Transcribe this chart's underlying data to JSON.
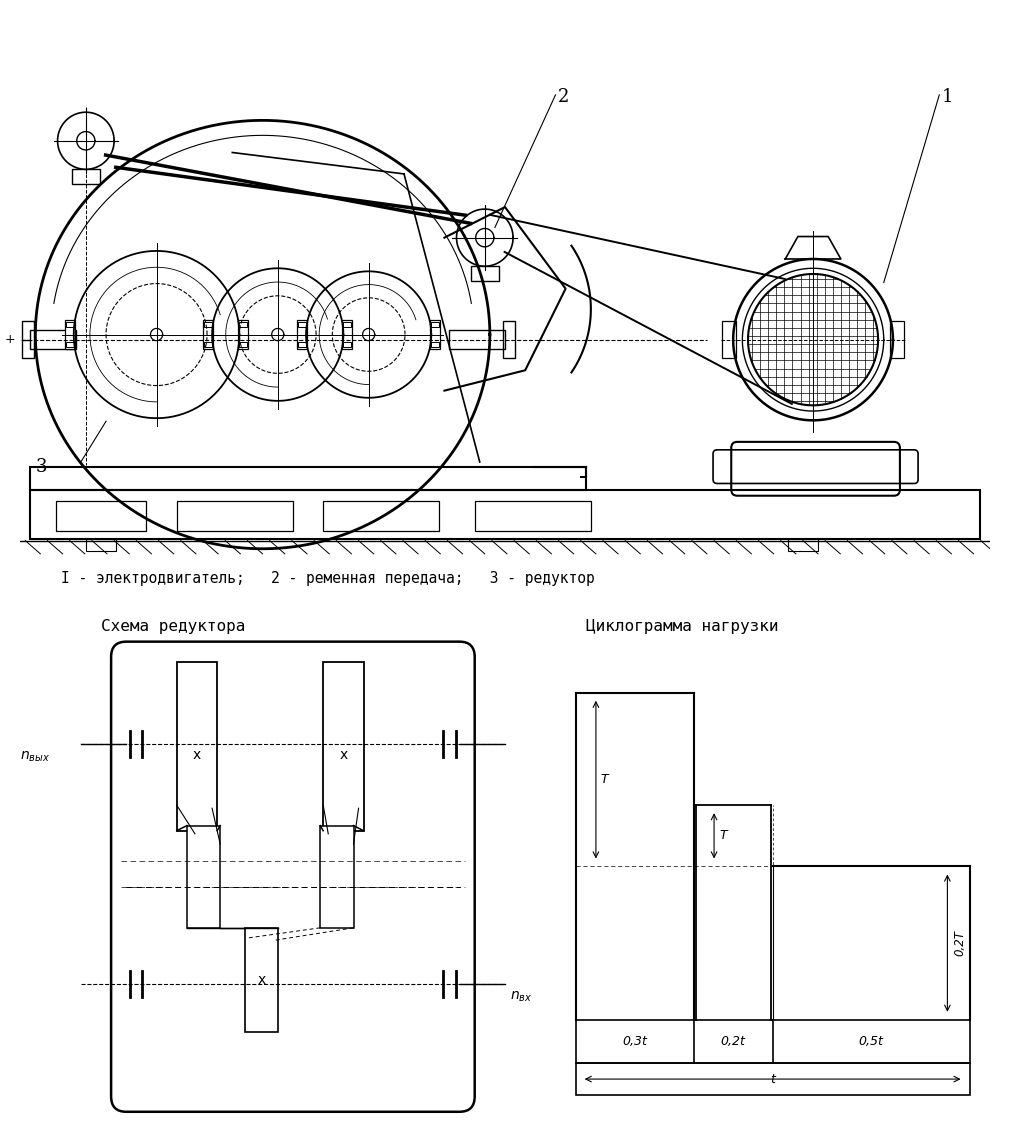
{
  "bg_color": "#ffffff",
  "line_color": "#000000",
  "title_legend": "I - электродвигатель;   2 - ременная передача;   3 - редуктор",
  "schema_title": "Схема редуктора",
  "cyclogram_title": "Циклограмма нагрузки",
  "label_n_vyx": "nвых",
  "label_n_vx": "nвх",
  "cyclogram_labels": [
    "0,3t",
    "0,2t",
    "0,5t"
  ],
  "cyclogram_t_label": "t",
  "cyclogram_T_label": "T",
  "cyclogram_T2_label": "T",
  "cyclogram_02T_label": "0,2T"
}
